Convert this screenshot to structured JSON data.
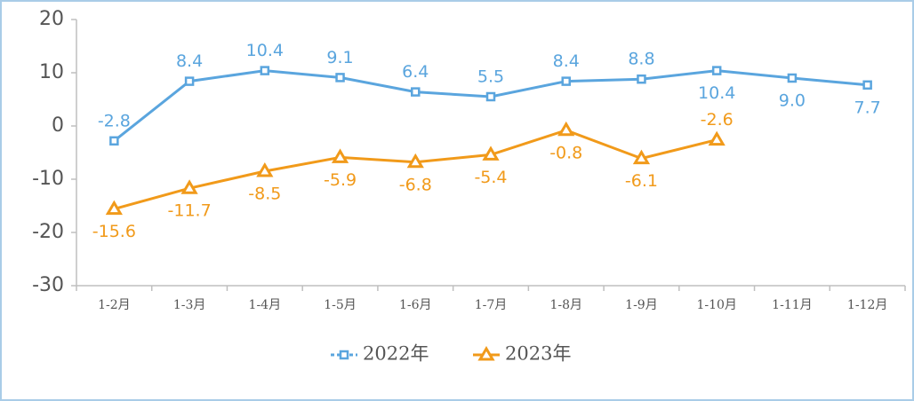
{
  "chart_data": {
    "type": "line",
    "categories": [
      "1-2月",
      "1-3月",
      "1-4月",
      "1-5月",
      "1-6月",
      "1-7月",
      "1-8月",
      "1-9月",
      "1-10月",
      "1-11月",
      "1-12月"
    ],
    "series": [
      {
        "name": "2022年",
        "color": "#5aa5de",
        "marker": "square",
        "values": [
          -2.8,
          8.4,
          10.4,
          9.1,
          6.4,
          5.5,
          8.4,
          8.8,
          10.4,
          9.0,
          7.7
        ],
        "value_labels": [
          "-2.8",
          "8.4",
          "10.4",
          "9.1",
          "6.4",
          "5.5",
          "8.4",
          "8.8",
          "10.4",
          "9.0",
          "7.7"
        ]
      },
      {
        "name": "2023年",
        "color": "#f19a1a",
        "marker": "triangle",
        "values": [
          -15.6,
          -11.7,
          -8.5,
          -5.9,
          -6.8,
          -5.4,
          -0.8,
          -6.1,
          -2.6,
          null,
          null
        ]
      }
    ],
    "ylim": [
      -30,
      20
    ],
    "yticks": [
      -30,
      -20,
      -10,
      0,
      10,
      20
    ],
    "legend": "bottom"
  }
}
